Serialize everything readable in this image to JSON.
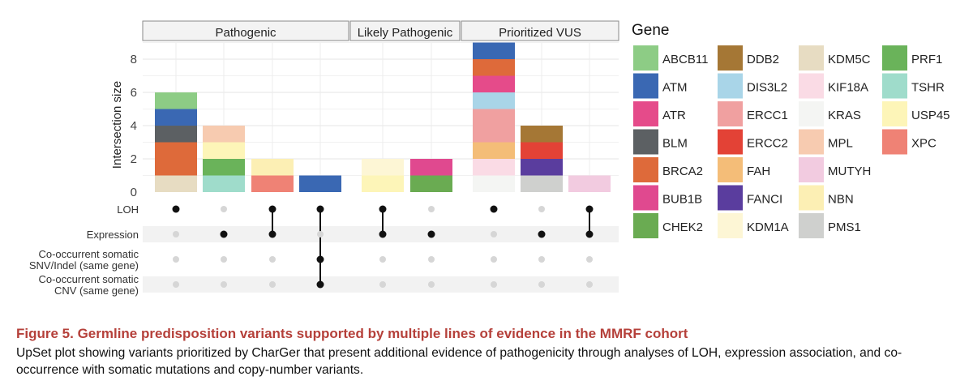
{
  "chart_data": {
    "type": "bar",
    "subtype": "upset",
    "ylabel": "Intersection size",
    "ylim": [
      0,
      9
    ],
    "yticks": [
      0,
      2,
      4,
      6,
      8
    ],
    "grid": true,
    "facets": [
      "Pathogenic",
      "Likely Pathogenic",
      "Prioritized VUS"
    ],
    "sets": [
      "LOH",
      "Expression",
      "Co-occurrent somatic\nSNV/Indel (same gene)",
      "Co-occurrent somatic\nCNV (same gene)"
    ],
    "columns": [
      {
        "facet": "Pathogenic",
        "members": [
          0
        ],
        "segments": [
          {
            "gene": "KDM5C",
            "value": 1
          },
          {
            "gene": "BRCA2",
            "value": 2
          },
          {
            "gene": "BLM",
            "value": 1
          },
          {
            "gene": "ATM",
            "value": 1
          },
          {
            "gene": "ABCB11",
            "value": 1
          }
        ]
      },
      {
        "facet": "Pathogenic",
        "members": [
          1
        ],
        "segments": [
          {
            "gene": "TSHR",
            "value": 1
          },
          {
            "gene": "PRF1",
            "value": 1
          },
          {
            "gene": "USP45",
            "value": 1
          },
          {
            "gene": "MPL",
            "value": 1
          }
        ]
      },
      {
        "facet": "Pathogenic",
        "members": [
          0,
          1
        ],
        "segments": [
          {
            "gene": "XPC",
            "value": 1
          },
          {
            "gene": "NBN",
            "value": 1
          }
        ]
      },
      {
        "facet": "Pathogenic",
        "members": [
          0,
          2,
          3
        ],
        "segments": [
          {
            "gene": "ATM",
            "value": 1
          }
        ]
      },
      {
        "facet": "Likely Pathogenic",
        "members": [
          0,
          1
        ],
        "segments": [
          {
            "gene": "USP45",
            "value": 1
          },
          {
            "gene": "KDM1A",
            "value": 1
          }
        ]
      },
      {
        "facet": "Likely Pathogenic",
        "members": [
          1
        ],
        "segments": [
          {
            "gene": "CHEK2",
            "value": 1
          },
          {
            "gene": "BUB1B",
            "value": 1
          }
        ]
      },
      {
        "facet": "Prioritized VUS",
        "members": [
          0
        ],
        "segments": [
          {
            "gene": "KRAS",
            "value": 1
          },
          {
            "gene": "KIF18A",
            "value": 1
          },
          {
            "gene": "FAH",
            "value": 1
          },
          {
            "gene": "ERCC1",
            "value": 2
          },
          {
            "gene": "DIS3L2",
            "value": 1
          },
          {
            "gene": "ATR",
            "value": 1
          },
          {
            "gene": "BRCA2",
            "value": 1
          },
          {
            "gene": "ATM",
            "value": 1
          }
        ]
      },
      {
        "facet": "Prioritized VUS",
        "members": [
          1
        ],
        "segments": [
          {
            "gene": "PMS1",
            "value": 1
          },
          {
            "gene": "FANCI",
            "value": 1
          },
          {
            "gene": "ERCC2",
            "value": 1
          },
          {
            "gene": "DDB2",
            "value": 1
          }
        ]
      },
      {
        "facet": "Prioritized VUS",
        "members": [
          0,
          1
        ],
        "segments": [
          {
            "gene": "MUTYH",
            "value": 1
          }
        ]
      }
    ],
    "legend": {
      "title": "Gene",
      "position": "right",
      "entries": [
        {
          "gene": "ABCB11",
          "color": "#8dcc85"
        },
        {
          "gene": "ATM",
          "color": "#3a68b3"
        },
        {
          "gene": "ATR",
          "color": "#e54b8a"
        },
        {
          "gene": "BLM",
          "color": "#5c6063"
        },
        {
          "gene": "BRCA2",
          "color": "#de6a3a"
        },
        {
          "gene": "BUB1B",
          "color": "#e0498f"
        },
        {
          "gene": "CHEK2",
          "color": "#6aab52"
        },
        {
          "gene": "DDB2",
          "color": "#a57735"
        },
        {
          "gene": "DIS3L2",
          "color": "#a9d5e8"
        },
        {
          "gene": "ERCC1",
          "color": "#f0a0a0"
        },
        {
          "gene": "ERCC2",
          "color": "#e34236"
        },
        {
          "gene": "FAH",
          "color": "#f4bd78"
        },
        {
          "gene": "FANCI",
          "color": "#5a3d9e"
        },
        {
          "gene": "KDM1A",
          "color": "#fdf6d5"
        },
        {
          "gene": "KDM5C",
          "color": "#e7dcc2"
        },
        {
          "gene": "KIF18A",
          "color": "#fadbe5"
        },
        {
          "gene": "KRAS",
          "color": "#f4f5f3"
        },
        {
          "gene": "MPL",
          "color": "#f7cbb0"
        },
        {
          "gene": "MUTYH",
          "color": "#f2cbe0"
        },
        {
          "gene": "NBN",
          "color": "#fcefb4"
        },
        {
          "gene": "PMS1",
          "color": "#cfd0ce"
        },
        {
          "gene": "PRF1",
          "color": "#6ab35a"
        },
        {
          "gene": "TSHR",
          "color": "#9fdccb"
        },
        {
          "gene": "USP45",
          "color": "#fdf5b8"
        },
        {
          "gene": "XPC",
          "color": "#ef8275"
        }
      ]
    }
  },
  "caption": {
    "title": "Figure 5.  Germline predisposition variants supported by multiple lines of evidence in the MMRF cohort",
    "body": "UpSet plot showing variants prioritized by CharGer that present additional evidence of pathogenicity through analyses of LOH, expression association, and co-occurrence with somatic mutations and copy-number variants."
  }
}
